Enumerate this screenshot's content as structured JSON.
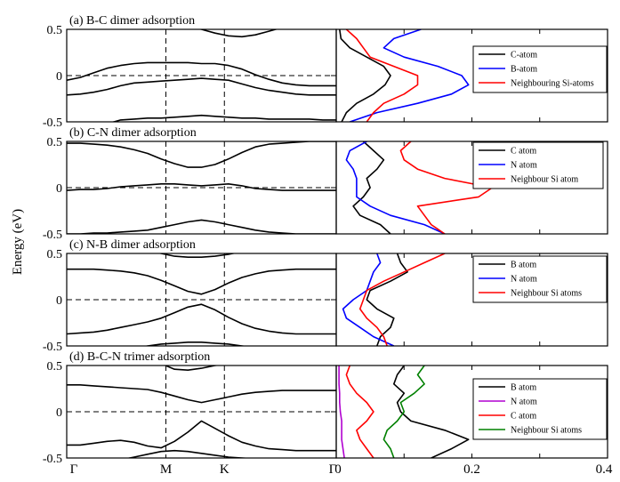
{
  "figure": {
    "ylabel": "Energy (eV)",
    "xticks": [
      "Γ",
      "M",
      "K",
      "Γ"
    ],
    "dos_xticks": [
      "0",
      "0.2",
      "0.4"
    ]
  },
  "colors": {
    "black": "#000000",
    "blue": "#0000ff",
    "red": "#ff0000",
    "green": "#008000",
    "magenta": "#b000d0"
  },
  "chart_data": [
    {
      "type": "line",
      "title": "(a) B-C dimer adsorption",
      "ylim": [
        -0.5,
        0.5
      ],
      "yticks": [
        "0.5",
        "0",
        "-0.5"
      ],
      "bands_x": [
        0,
        0.05,
        0.1,
        0.15,
        0.2,
        0.25,
        0.3,
        0.35,
        0.4,
        0.45,
        0.5,
        0.55,
        0.6,
        0.65,
        0.7,
        0.75,
        0.8,
        0.85,
        0.9,
        0.95,
        1
      ],
      "bands": [
        [
          0.6,
          0.6,
          0.59,
          0.58,
          0.56,
          0.55,
          0.56,
          0.58,
          0.56,
          0.53,
          0.5,
          0.46,
          0.43,
          0.42,
          0.44,
          0.48,
          0.52,
          0.54,
          0.56,
          0.57,
          0.57
        ],
        [
          -0.05,
          -0.02,
          0.03,
          0.08,
          0.11,
          0.13,
          0.14,
          0.14,
          0.14,
          0.14,
          0.13,
          0.13,
          0.11,
          0.07,
          0.01,
          -0.04,
          -0.08,
          -0.1,
          -0.11,
          -0.11,
          -0.11
        ],
        [
          -0.21,
          -0.2,
          -0.18,
          -0.15,
          -0.11,
          -0.08,
          -0.07,
          -0.06,
          -0.05,
          -0.04,
          -0.03,
          -0.04,
          -0.05,
          -0.09,
          -0.13,
          -0.16,
          -0.18,
          -0.2,
          -0.21,
          -0.21,
          -0.21
        ],
        [
          -0.55,
          -0.55,
          -0.55,
          -0.52,
          -0.48,
          -0.47,
          -0.46,
          -0.46,
          -0.45,
          -0.44,
          -0.43,
          -0.44,
          -0.45,
          -0.46,
          -0.46,
          -0.47,
          -0.47,
          -0.47,
          -0.47,
          -0.48,
          -0.48
        ]
      ],
      "dos_xlim": [
        0,
        0.4
      ],
      "dos_energy": [
        -0.5,
        -0.4,
        -0.3,
        -0.2,
        -0.1,
        0,
        0.1,
        0.2,
        0.3,
        0.4,
        0.5
      ],
      "series": [
        {
          "name": "C-atom",
          "color": "#000000",
          "values": [
            0.008,
            0.015,
            0.03,
            0.055,
            0.072,
            0.08,
            0.07,
            0.045,
            0.02,
            0.007,
            0.005
          ]
        },
        {
          "name": "B-atom",
          "color": "#0000ff",
          "values": [
            0.02,
            0.06,
            0.12,
            0.17,
            0.195,
            0.185,
            0.15,
            0.1,
            0.07,
            0.085,
            0.125
          ]
        },
        {
          "name": "Neighbouring Si-atoms",
          "color": "#ff0000",
          "values": [
            0.045,
            0.055,
            0.07,
            0.1,
            0.12,
            0.12,
            0.085,
            0.05,
            0.04,
            0.03,
            0.015
          ]
        }
      ]
    },
    {
      "type": "line",
      "title": "(b) C-N dimer adsorption",
      "ylim": [
        -0.5,
        0.5
      ],
      "yticks": [
        "0.5",
        "0",
        "-0.5"
      ],
      "bands_x": [
        0,
        0.05,
        0.1,
        0.15,
        0.2,
        0.25,
        0.3,
        0.35,
        0.4,
        0.45,
        0.5,
        0.55,
        0.6,
        0.65,
        0.7,
        0.75,
        0.8,
        0.85,
        0.9,
        0.95,
        1
      ],
      "bands": [
        [
          0.48,
          0.48,
          0.47,
          0.46,
          0.44,
          0.41,
          0.37,
          0.31,
          0.26,
          0.22,
          0.22,
          0.25,
          0.31,
          0.38,
          0.44,
          0.47,
          0.48,
          0.49,
          0.5,
          0.5,
          0.5
        ],
        [
          -0.03,
          -0.02,
          -0.02,
          -0.01,
          0.01,
          0.02,
          0.03,
          0.04,
          0.04,
          0.03,
          0.02,
          0.03,
          0.04,
          0.02,
          -0.01,
          -0.02,
          -0.03,
          -0.03,
          -0.03,
          -0.03,
          -0.03
        ],
        [
          -0.5,
          -0.5,
          -0.49,
          -0.49,
          -0.48,
          -0.47,
          -0.46,
          -0.43,
          -0.4,
          -0.37,
          -0.35,
          -0.37,
          -0.4,
          -0.43,
          -0.46,
          -0.48,
          -0.49,
          -0.5,
          -0.5,
          -0.5,
          -0.5
        ]
      ],
      "dos_xlim": [
        0,
        0.4
      ],
      "dos_energy": [
        -0.5,
        -0.4,
        -0.3,
        -0.2,
        -0.1,
        0,
        0.1,
        0.2,
        0.3,
        0.4,
        0.5
      ],
      "series": [
        {
          "name": "C atom",
          "color": "#000000",
          "values": [
            0.08,
            0.065,
            0.035,
            0.025,
            0.04,
            0.05,
            0.045,
            0.06,
            0.07,
            0.055,
            0.04
          ]
        },
        {
          "name": "N atom",
          "color": "#0000ff",
          "values": [
            0.16,
            0.13,
            0.08,
            0.05,
            0.03,
            0.03,
            0.03,
            0.025,
            0.015,
            0.02,
            0.045
          ]
        },
        {
          "name": "Neighbour Si atom",
          "color": "#ff0000",
          "values": [
            0.16,
            0.14,
            0.13,
            0.12,
            0.21,
            0.23,
            0.16,
            0.12,
            0.1,
            0.095,
            0.11
          ]
        }
      ]
    },
    {
      "type": "line",
      "title": "(c) N-B dimer adsorption",
      "ylim": [
        -0.5,
        0.5
      ],
      "yticks": [
        "0.5",
        "0",
        "-0.5"
      ],
      "bands_x": [
        0,
        0.05,
        0.1,
        0.15,
        0.2,
        0.25,
        0.3,
        0.35,
        0.4,
        0.45,
        0.5,
        0.55,
        0.6,
        0.65,
        0.7,
        0.75,
        0.8,
        0.85,
        0.9,
        0.95,
        1
      ],
      "bands": [
        [
          0.6,
          0.6,
          0.6,
          0.6,
          0.59,
          0.57,
          0.54,
          0.5,
          0.47,
          0.46,
          0.46,
          0.47,
          0.49,
          0.52,
          0.55,
          0.57,
          0.58,
          0.59,
          0.6,
          0.6,
          0.6
        ],
        [
          0.33,
          0.33,
          0.33,
          0.32,
          0.31,
          0.29,
          0.26,
          0.21,
          0.15,
          0.09,
          0.06,
          0.11,
          0.18,
          0.24,
          0.28,
          0.31,
          0.32,
          0.33,
          0.33,
          0.33,
          0.33
        ],
        [
          -0.37,
          -0.36,
          -0.35,
          -0.33,
          -0.3,
          -0.27,
          -0.24,
          -0.2,
          -0.14,
          -0.08,
          -0.05,
          -0.11,
          -0.19,
          -0.26,
          -0.31,
          -0.34,
          -0.36,
          -0.37,
          -0.37,
          -0.37,
          -0.37
        ],
        [
          -0.7,
          -0.68,
          -0.64,
          -0.6,
          -0.56,
          -0.53,
          -0.5,
          -0.48,
          -0.47,
          -0.46,
          -0.46,
          -0.47,
          -0.48,
          -0.5,
          -0.52,
          -0.54,
          -0.56,
          -0.58,
          -0.6,
          -0.6,
          -0.6
        ]
      ],
      "dos_xlim": [
        0,
        0.4
      ],
      "dos_energy": [
        -0.5,
        -0.4,
        -0.3,
        -0.2,
        -0.1,
        0,
        0.1,
        0.2,
        0.3,
        0.4,
        0.5
      ],
      "series": [
        {
          "name": "B atom",
          "color": "#000000",
          "values": [
            0.06,
            0.065,
            0.08,
            0.085,
            0.06,
            0.045,
            0.05,
            0.08,
            0.105,
            0.095,
            0.09
          ]
        },
        {
          "name": "N atom",
          "color": "#0000ff",
          "values": [
            0.085,
            0.055,
            0.035,
            0.015,
            0.01,
            0.025,
            0.045,
            0.05,
            0.055,
            0.065,
            0.06
          ]
        },
        {
          "name": "Neighbour Si atoms",
          "color": "#ff0000",
          "values": [
            0.075,
            0.07,
            0.06,
            0.045,
            0.035,
            0.04,
            0.045,
            0.07,
            0.1,
            0.13,
            0.16
          ]
        }
      ]
    },
    {
      "type": "line",
      "title": "(d) B-C-N trimer adsorption",
      "ylim": [
        -0.5,
        0.5
      ],
      "yticks": [
        "0.5",
        "0",
        "-0.5"
      ],
      "bands_x": [
        0,
        0.05,
        0.1,
        0.15,
        0.2,
        0.25,
        0.3,
        0.35,
        0.4,
        0.45,
        0.5,
        0.55,
        0.6,
        0.65,
        0.7,
        0.75,
        0.8,
        0.85,
        0.9,
        0.95,
        1
      ],
      "bands": [
        [
          0.6,
          0.6,
          0.6,
          0.6,
          0.6,
          0.58,
          0.56,
          0.52,
          0.46,
          0.45,
          0.47,
          0.5,
          0.52,
          0.54,
          0.55,
          0.56,
          0.56,
          0.56,
          0.56,
          0.56,
          0.56
        ],
        [
          0.29,
          0.29,
          0.28,
          0.27,
          0.26,
          0.25,
          0.24,
          0.21,
          0.17,
          0.13,
          0.1,
          0.13,
          0.16,
          0.19,
          0.21,
          0.22,
          0.23,
          0.23,
          0.23,
          0.23,
          0.23
        ],
        [
          -0.36,
          -0.36,
          -0.34,
          -0.32,
          -0.31,
          -0.33,
          -0.37,
          -0.39,
          -0.32,
          -0.22,
          -0.1,
          -0.18,
          -0.26,
          -0.33,
          -0.37,
          -0.4,
          -0.41,
          -0.42,
          -0.42,
          -0.42,
          -0.42
        ],
        [
          -0.55,
          -0.55,
          -0.55,
          -0.54,
          -0.52,
          -0.49,
          -0.46,
          -0.43,
          -0.42,
          -0.43,
          -0.45,
          -0.47,
          -0.49,
          -0.5,
          -0.51,
          -0.52,
          -0.53,
          -0.53,
          -0.53,
          -0.53,
          -0.53
        ]
      ],
      "dos_xlim": [
        0,
        0.4
      ],
      "dos_energy": [
        -0.5,
        -0.4,
        -0.3,
        -0.2,
        -0.1,
        0,
        0.1,
        0.2,
        0.3,
        0.4,
        0.5
      ],
      "series": [
        {
          "name": "B atom",
          "color": "#000000",
          "values": [
            0.14,
            0.17,
            0.195,
            0.16,
            0.11,
            0.095,
            0.09,
            0.1,
            0.085,
            0.09,
            0.1
          ]
        },
        {
          "name": "N atom",
          "color": "#b000d0",
          "values": [
            0.012,
            0.01,
            0.008,
            0.008,
            0.008,
            0.006,
            0.005,
            0.005,
            0.004,
            0.004,
            0.004
          ]
        },
        {
          "name": "C atom",
          "color": "#ff0000",
          "values": [
            0.055,
            0.045,
            0.035,
            0.03,
            0.045,
            0.055,
            0.045,
            0.03,
            0.02,
            0.015,
            0.02
          ]
        },
        {
          "name": "Neighbour Si atoms",
          "color": "#008000",
          "values": [
            0.085,
            0.08,
            0.07,
            0.075,
            0.09,
            0.1,
            0.095,
            0.115,
            0.13,
            0.12,
            0.13
          ]
        }
      ]
    }
  ]
}
